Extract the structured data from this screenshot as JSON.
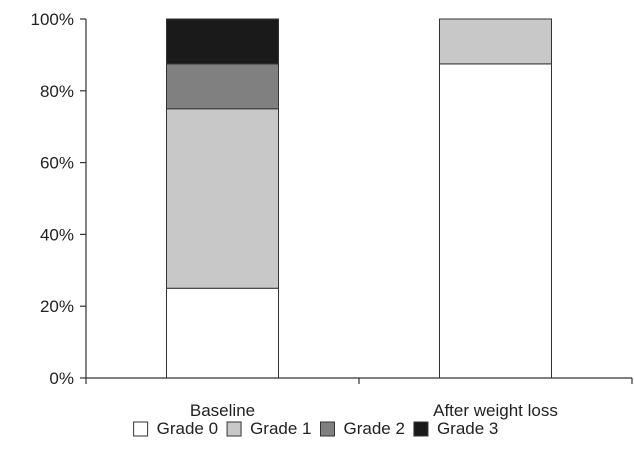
{
  "chart_data": {
    "type": "bar",
    "stacked": true,
    "categories": [
      "Baseline",
      "After weight loss"
    ],
    "series": [
      {
        "name": "Grade 0",
        "values": [
          25,
          87.5
        ],
        "color": "#ffffff"
      },
      {
        "name": "Grade 1",
        "values": [
          50,
          12.5
        ],
        "color": "#c8c8c8"
      },
      {
        "name": "Grade 2",
        "values": [
          12.5,
          0
        ],
        "color": "#808080"
      },
      {
        "name": "Grade 3",
        "values": [
          12.5,
          0
        ],
        "color": "#1a1a1a"
      }
    ],
    "y_ticks": [
      "0%",
      "20%",
      "40%",
      "60%",
      "80%",
      "100%"
    ],
    "ylim": [
      0,
      100
    ],
    "title": "",
    "xlabel": "",
    "ylabel": "",
    "grid": false,
    "legend_position": "bottom"
  }
}
